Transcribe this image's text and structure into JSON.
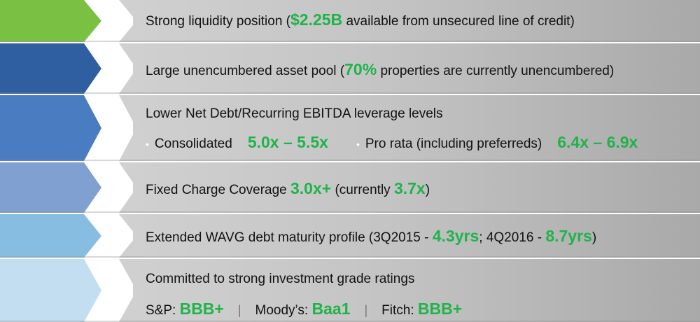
{
  "colors": {
    "green": "#7ac143",
    "blue1": "#2f5fa0",
    "blue2": "#4a7cc1",
    "blue3": "#7fa0d0",
    "blue4": "#86bde0",
    "blue5": "#c2def0",
    "highlight": "#1fb34a"
  },
  "rows": [
    {
      "parts": [
        "Strong liquidity position (",
        "$2.25B",
        " available from unsecured line of credit)"
      ]
    },
    {
      "parts": [
        "Large unencumbered asset pool (",
        "70%",
        " properties are currently unencumbered)"
      ]
    },
    {
      "heading": "Lower Net Debt/Recurring EBITDA leverage levels",
      "bullet": "•",
      "item1_label": "Consolidated",
      "item1_value": "5.0x – 5.5x",
      "item2_label": "Pro rata (including preferreds)",
      "item2_value": "6.4x – 6.9x"
    },
    {
      "parts": [
        "Fixed Charge Coverage ",
        "3.0x+",
        " (currently ",
        "3.7x",
        ")"
      ]
    },
    {
      "parts": [
        "Extended WAVG debt maturity profile (3Q2015 - ",
        "4.3yrs",
        "; 4Q2016 - ",
        "8.7yrs",
        ")"
      ]
    },
    {
      "heading": "Committed to strong investment grade ratings",
      "ratings": [
        {
          "agency": "S&P: ",
          "value": "BBB+"
        },
        {
          "agency": "Moody’s: ",
          "value": "Baa1"
        },
        {
          "agency": "Fitch: ",
          "value": "BBB+"
        }
      ],
      "separator": "|"
    }
  ]
}
